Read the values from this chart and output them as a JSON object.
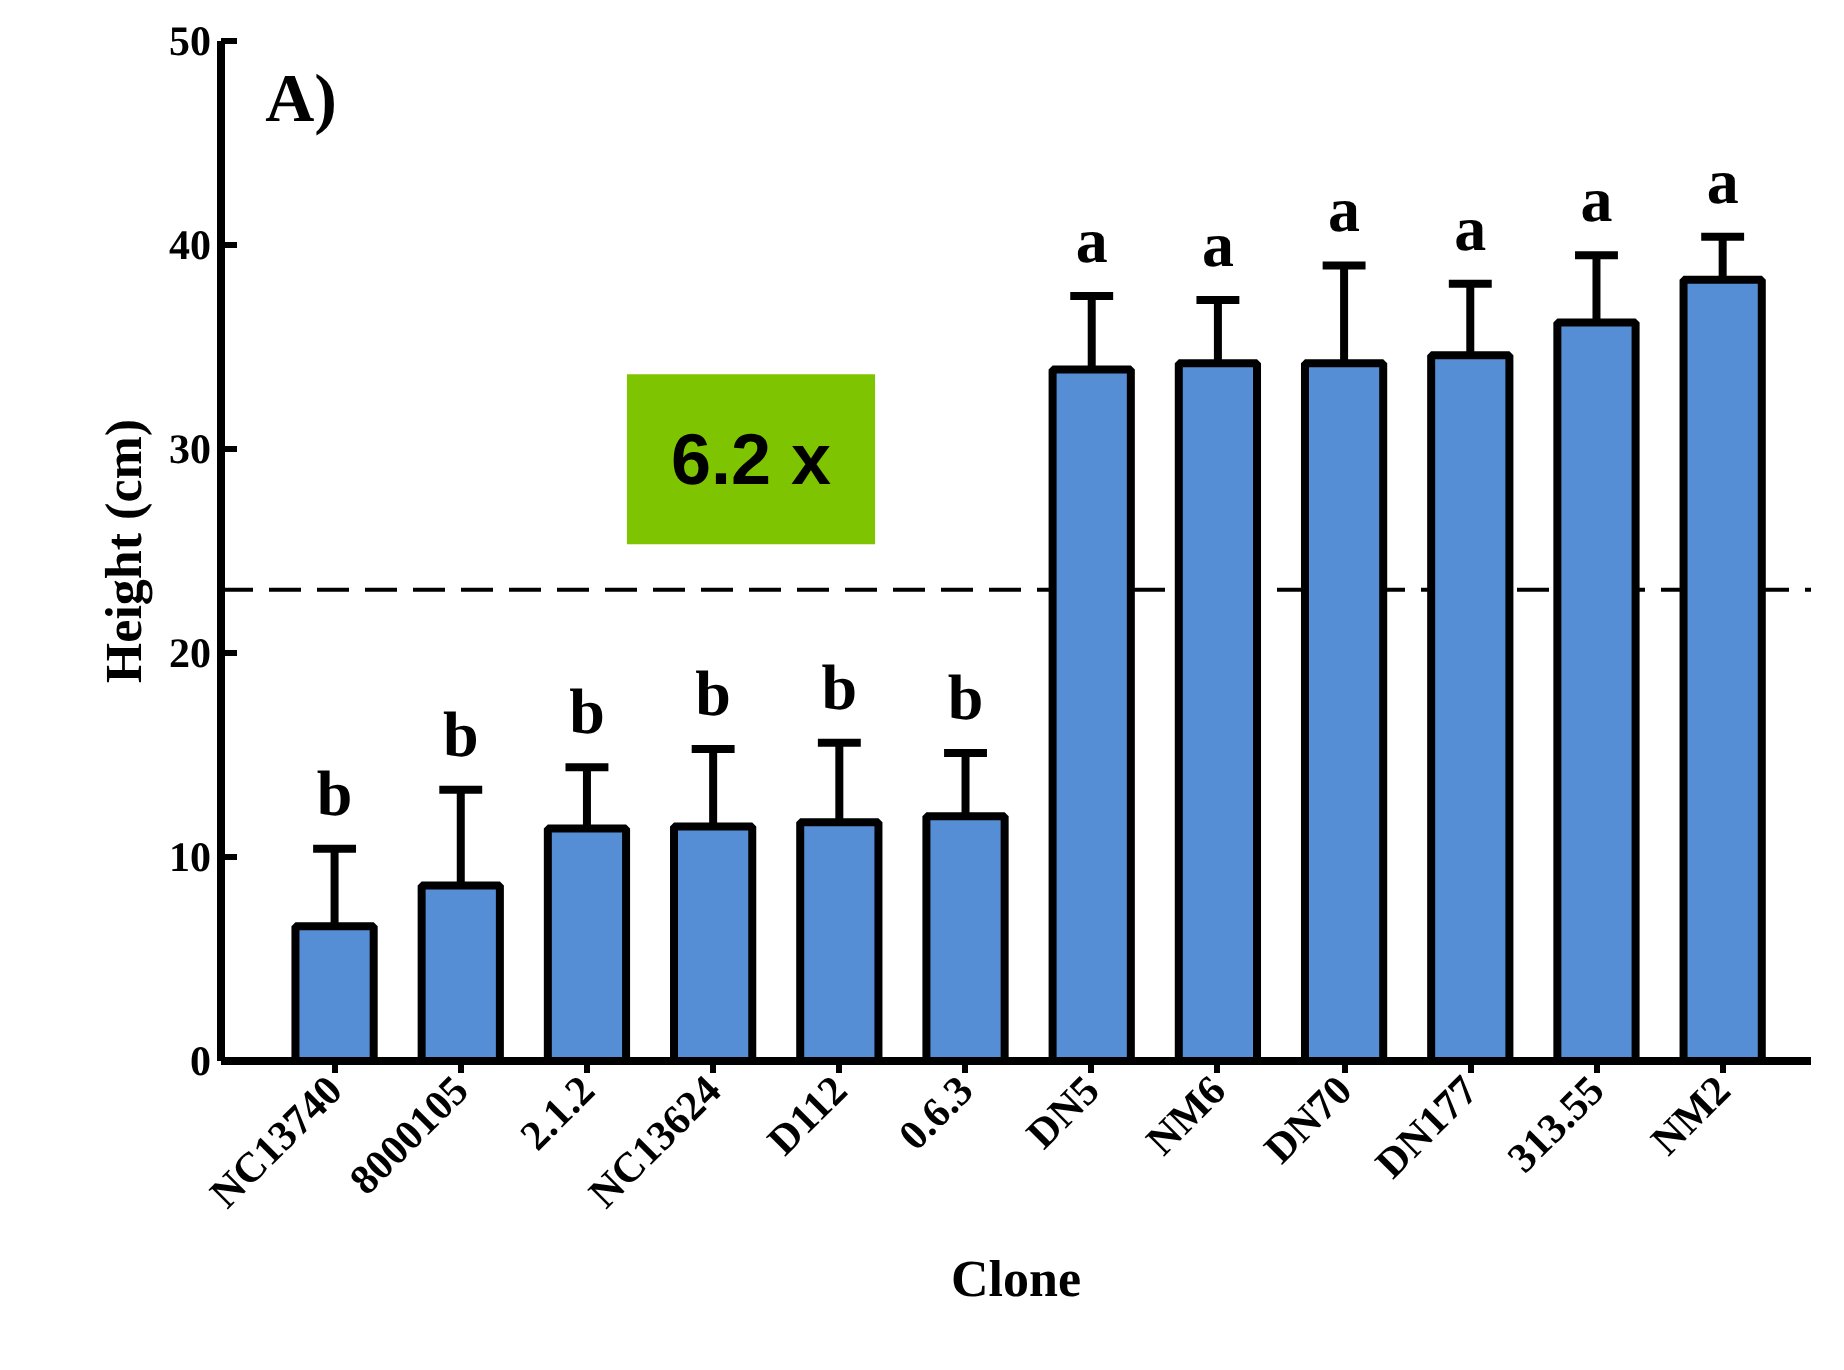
{
  "chart_data": {
    "type": "bar",
    "xlabel": "Clone",
    "ylabel": "Height (cm)",
    "categories": [
      "NC13740",
      "8000105",
      "2.1.2",
      "NC13624",
      "D112",
      "0.6.3",
      "DN5",
      "NM6",
      "DN70",
      "DN177",
      "313.55",
      "NM2"
    ],
    "values": [
      6.6,
      8.6,
      11.4,
      11.5,
      11.7,
      12.0,
      33.9,
      34.2,
      34.2,
      34.6,
      36.2,
      38.3
    ],
    "errors": [
      [
        6.6,
        10.4
      ],
      [
        8.6,
        13.3
      ],
      [
        11.4,
        14.4
      ],
      [
        11.5,
        15.3
      ],
      [
        11.7,
        15.6
      ],
      [
        12.0,
        15.1
      ],
      [
        33.9,
        37.5
      ],
      [
        34.2,
        37.3
      ],
      [
        34.2,
        39.0
      ],
      [
        34.6,
        38.1
      ],
      [
        36.2,
        39.5
      ],
      [
        38.3,
        40.4
      ]
    ],
    "color": "#568ed6",
    "ylim": [
      0,
      50
    ],
    "yticks": [
      0,
      10,
      20,
      30,
      40,
      50
    ],
    "grid": false,
    "ref_lines": [
      {
        "axis": "y",
        "value": 23.1,
        "line_style": "dashed",
        "color": "#000000"
      }
    ],
    "annotations": [
      "A)",
      "6.2 x",
      {
        "text": "b",
        "x": "NC13740",
        "y": 10.4
      },
      {
        "text": "b",
        "x": "8000105",
        "y": 13.3
      },
      {
        "text": "b",
        "x": "2.1.2",
        "y": 14.4
      },
      {
        "text": "b",
        "x": "NC13624",
        "y": 15.3
      },
      {
        "text": "b",
        "x": "D112",
        "y": 15.6
      },
      {
        "text": "b",
        "x": "0.6.3",
        "y": 15.1
      },
      {
        "text": "a",
        "x": "DN5",
        "y": 37.5
      },
      {
        "text": "a",
        "x": "NM6",
        "y": 37.3
      },
      {
        "text": "a",
        "x": "DN70",
        "y": 39.0
      },
      {
        "text": "a",
        "x": "DN177",
        "y": 38.1
      },
      {
        "text": "a",
        "x": "313.55",
        "y": 39.5
      },
      {
        "text": "a",
        "x": "NM2",
        "y": 40.4
      }
    ]
  }
}
